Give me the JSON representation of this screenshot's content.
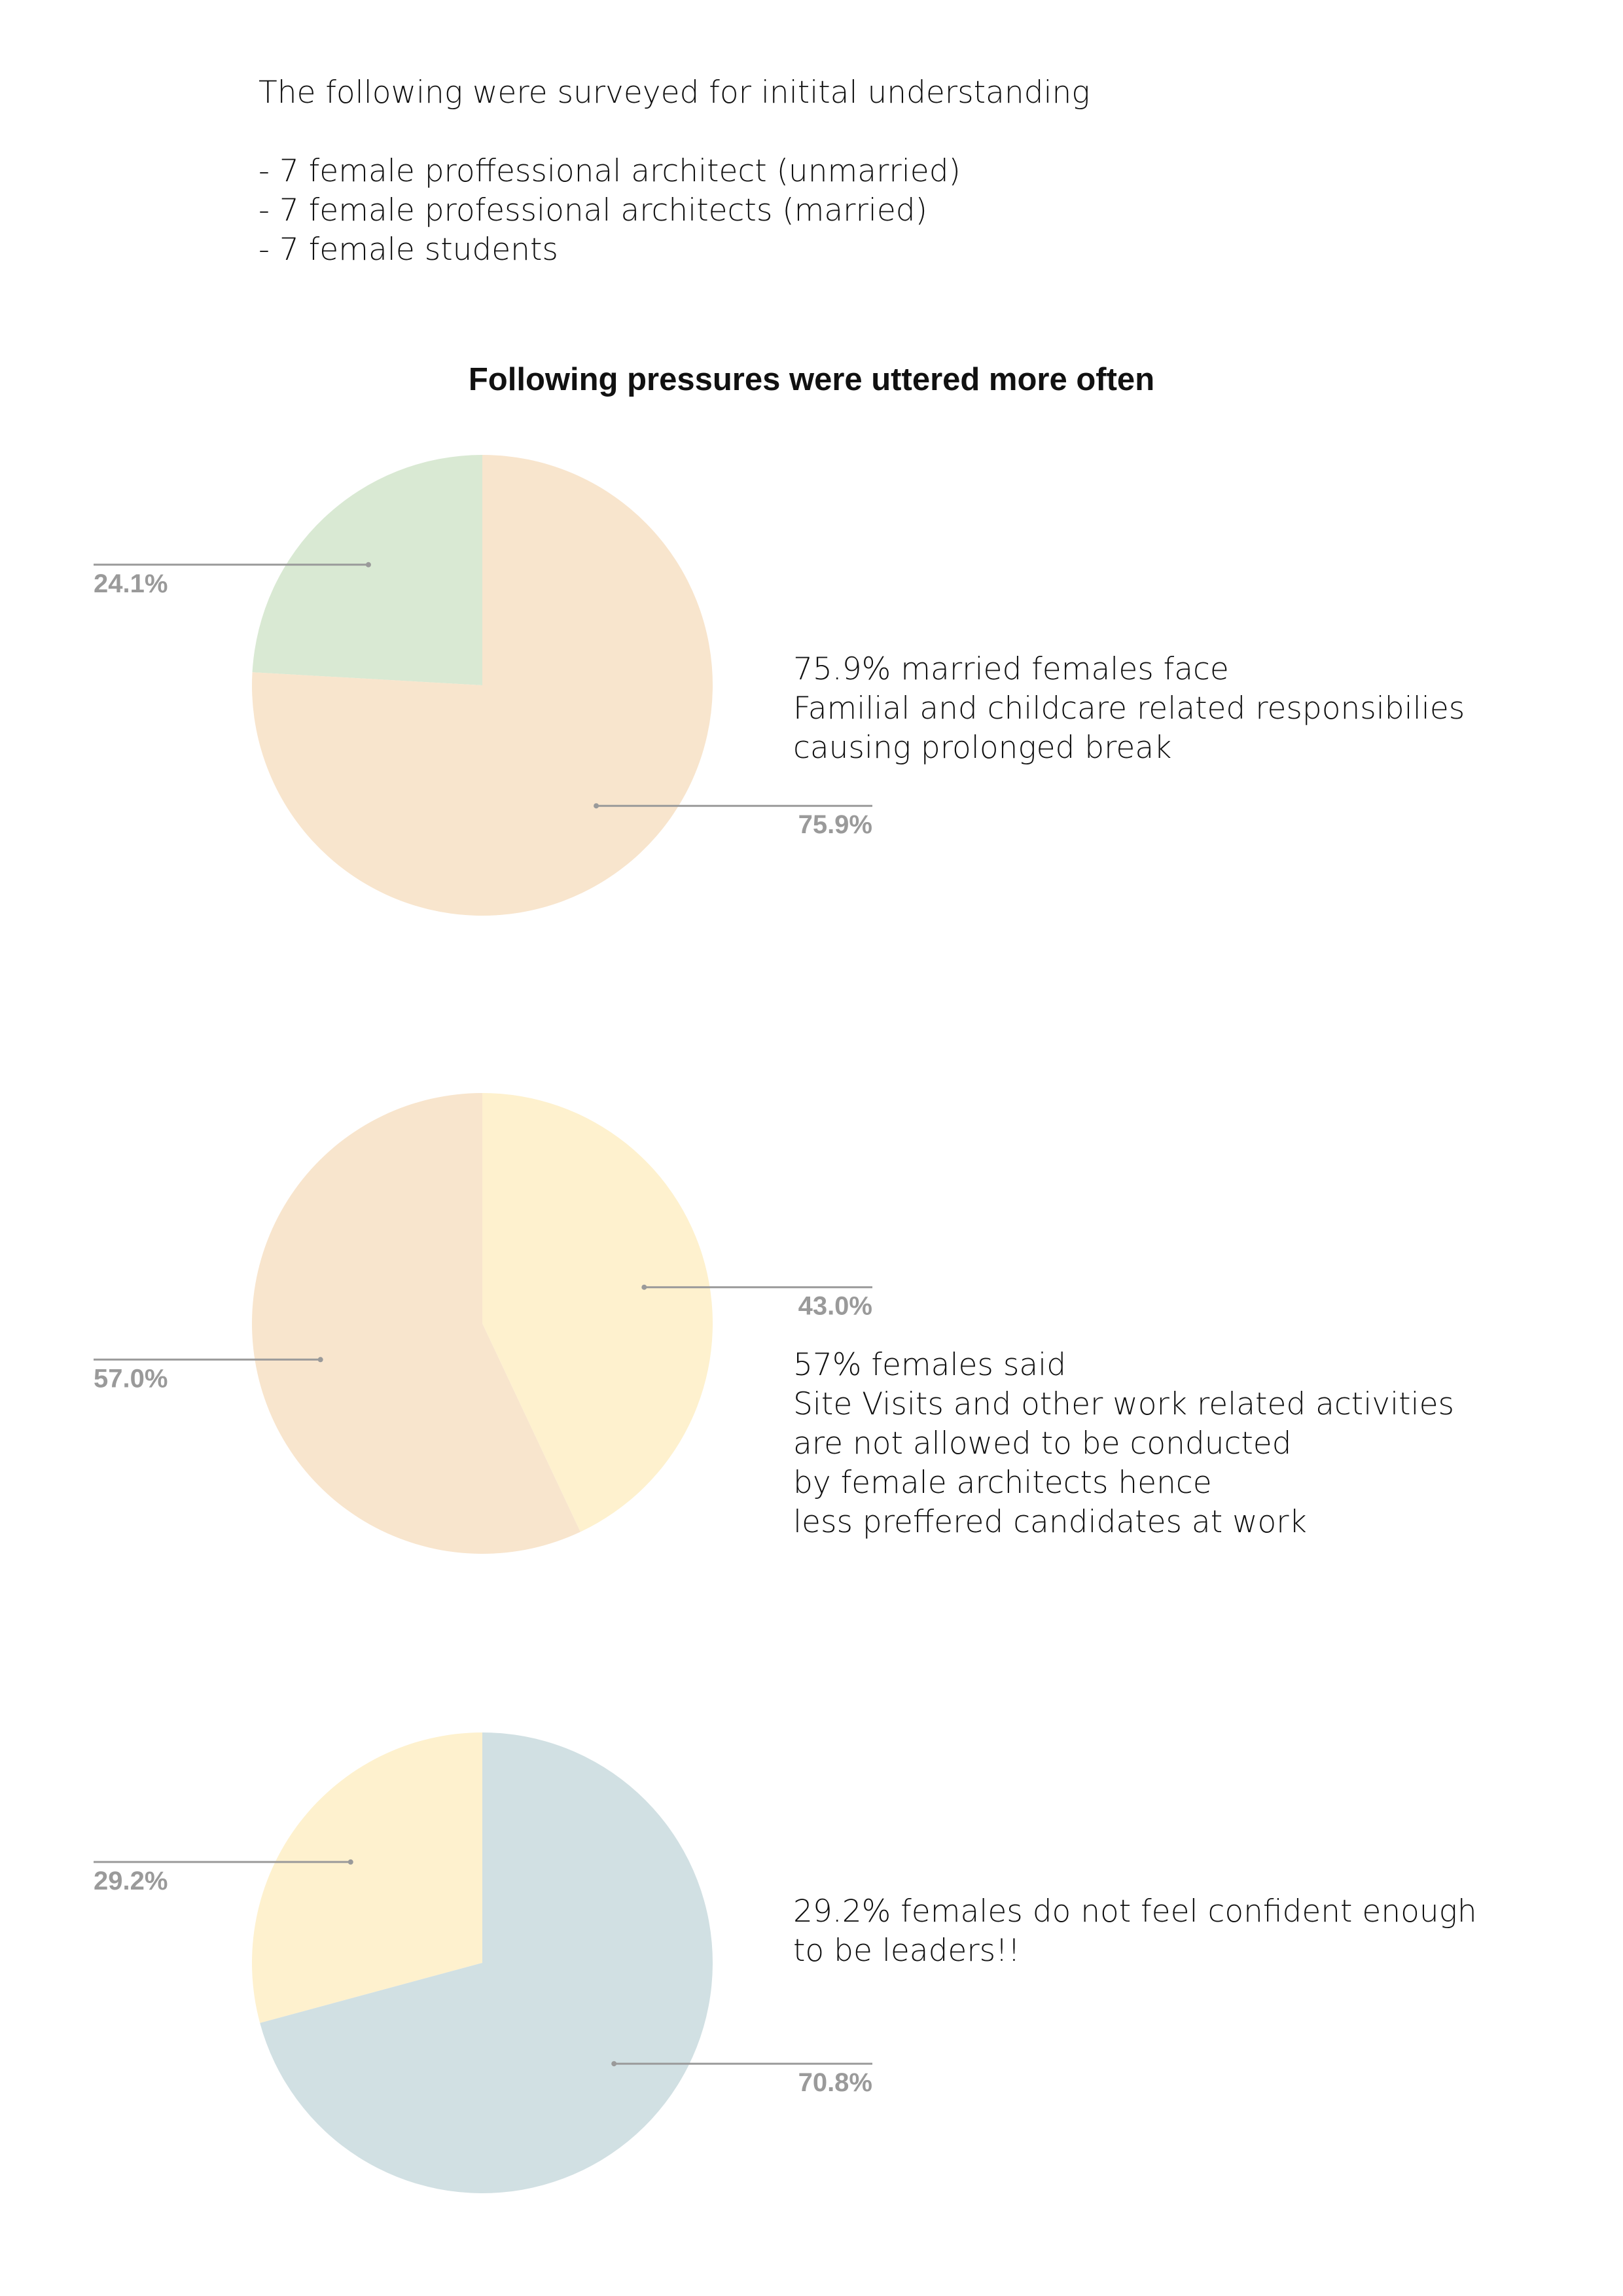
{
  "intro": {
    "lines": [
      "The following were surveyed for initital understanding",
      "- 7 female proffessional architect (unmarried)",
      "- 7 female professional architects (married)",
      "- 7 female students"
    ]
  },
  "heading": "Following pressures were uttered more often",
  "chart_data": [
    {
      "type": "pie",
      "start_angle_deg": 0,
      "direction": "counterclockwise",
      "slices": [
        {
          "label": "24.1%",
          "value": 24.1,
          "color": "#d9e9d3"
        },
        {
          "label": "75.9%",
          "value": 75.9,
          "color": "#f8e5cd"
        }
      ]
    },
    {
      "type": "pie",
      "start_angle_deg": 0,
      "direction": "clockwise",
      "slices": [
        {
          "label": "43.0%",
          "value": 43.0,
          "color": "#fef1ce"
        },
        {
          "label": "57.0%",
          "value": 57.0,
          "color": "#f8e5cd"
        }
      ]
    },
    {
      "type": "pie",
      "start_angle_deg": 0,
      "direction": "counterclockwise",
      "slices": [
        {
          "label": "29.2%",
          "value": 29.2,
          "color": "#fef1ce"
        },
        {
          "label": "70.8%",
          "value": 70.8,
          "color": "#d1e0e3"
        }
      ]
    }
  ],
  "descriptions": [
    {
      "lines": [
        "75.9% married females face",
        "Familial and childcare related responsibilies",
        "causing prolonged break"
      ]
    },
    {
      "lines": [
        "57% females said",
        "Site Visits and other work related activities",
        "are not allowed to be conducted",
        "by female architects hence",
        "less preffered candidates at work"
      ]
    },
    {
      "lines": [
        "29.2% females do not feel confident enough",
        "to be leaders!!"
      ]
    }
  ],
  "colors": {
    "leader_line": "#9a9a9a",
    "label_text": "#9a9a9a"
  }
}
